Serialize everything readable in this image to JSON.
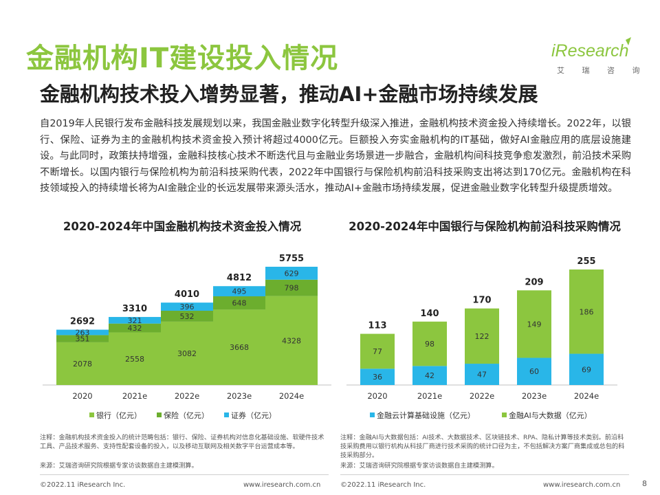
{
  "header": {
    "title": "金融机构IT建设投入情况",
    "subtitle": "金融机构技术投入增势显著，推动AI+金融市场持续发展",
    "logo_text": "iResearch",
    "logo_cn": "艾 瑞 咨 询"
  },
  "intro": "自2019年人民银行发布金融科技发展规划以来，我国金融业数字化转型升级深入推进，金融机构技术资金投入持续增长。2022年，以银行、保险、证券为主的金融机构技术资金投入预计将超过4000亿元。巨额投入夯实金融机构的IT基础，做好AI金融应用的底层设施建设。与此同时，政策扶持增强，金融科技核心技术不断迭代且与金融业务场景进一步融合，金融机构间科技竞争愈发激烈，前沿技术采购不断增长。以国内银行与保险机构为前沿科技采购代表，2022年中国银行与保险机构前沿科技采购支出将达到170亿元。金融机构在科技领域投入的持续增长将为AI金融企业的长远发展带来源头活水，推动AI+金融市场持续发展，促进金融业数字化转型升级提质增效。",
  "colors": {
    "green": "#8cc63f",
    "blue": "#29b6e8"
  },
  "chart_data": [
    {
      "type": "bar",
      "stacked": true,
      "title": "2020-2024年中国金融机构技术资金投入情况",
      "categories": [
        "2020",
        "2021e",
        "2022e",
        "2023e",
        "2024e"
      ],
      "series": [
        {
          "name": "银行（亿元）",
          "values": [
            2078,
            2558,
            3082,
            3668,
            4328
          ],
          "color": "#8cc63f"
        },
        {
          "name": "保险（亿元）",
          "values": [
            351,
            432,
            532,
            648,
            798
          ],
          "color": "#6cae2e"
        },
        {
          "name": "证券（亿元）",
          "values": [
            263,
            321,
            396,
            495,
            629
          ],
          "color": "#29b6e8"
        }
      ],
      "totals": [
        2692,
        3310,
        4010,
        4812,
        5755
      ],
      "legend": "bottom"
    },
    {
      "type": "bar",
      "stacked": true,
      "title": "2020-2024年中国银行与保险机构前沿科技采购情况",
      "categories": [
        "2020",
        "2021e",
        "2022e",
        "2023e",
        "2024e"
      ],
      "series": [
        {
          "name": "金融云计算基础设施（亿元）",
          "values": [
            36,
            42,
            47,
            60,
            69
          ],
          "color": "#29b6e8"
        },
        {
          "name": "金融AI与大数据（亿元）",
          "values": [
            77,
            98,
            122,
            149,
            186
          ],
          "color": "#8cc63f"
        }
      ],
      "totals": [
        113,
        140,
        170,
        209,
        255
      ],
      "legend": "bottom"
    }
  ],
  "notes": {
    "note1": "注释：金融机构技术资金投入的统计范畴包括：银行、保险、证券机构对信息化基础设施、软硬件技术工具、产品技术服务、支持性配套设备的投入，以及移动互联网及相关数字平台运营成本等。",
    "source1": "来源：艾瑞咨询研究院根据专家访谈数据自主建模测算。",
    "note2": "注释：金融AI与大数据包括：AI技术、大数据技术、区块链技术、RPA、隐私计算等技术类别。前沿科技采购费用以银行机构从科技厂商进行技术采购的统计口径为主，不包括解决方案厂商集成或总包的科技采购部分。",
    "source2": "来源：艾瑞咨询研究院根据专家访谈数据自主建模测算。"
  },
  "footer": {
    "copyright_left": "©2022.11 iResearch Inc.",
    "url_left": "www.iresearch.com.cn",
    "copyright_right": "©2022.11 iResearch Inc.",
    "url_right": "www.iresearch.com.cn",
    "page_number": "8"
  }
}
